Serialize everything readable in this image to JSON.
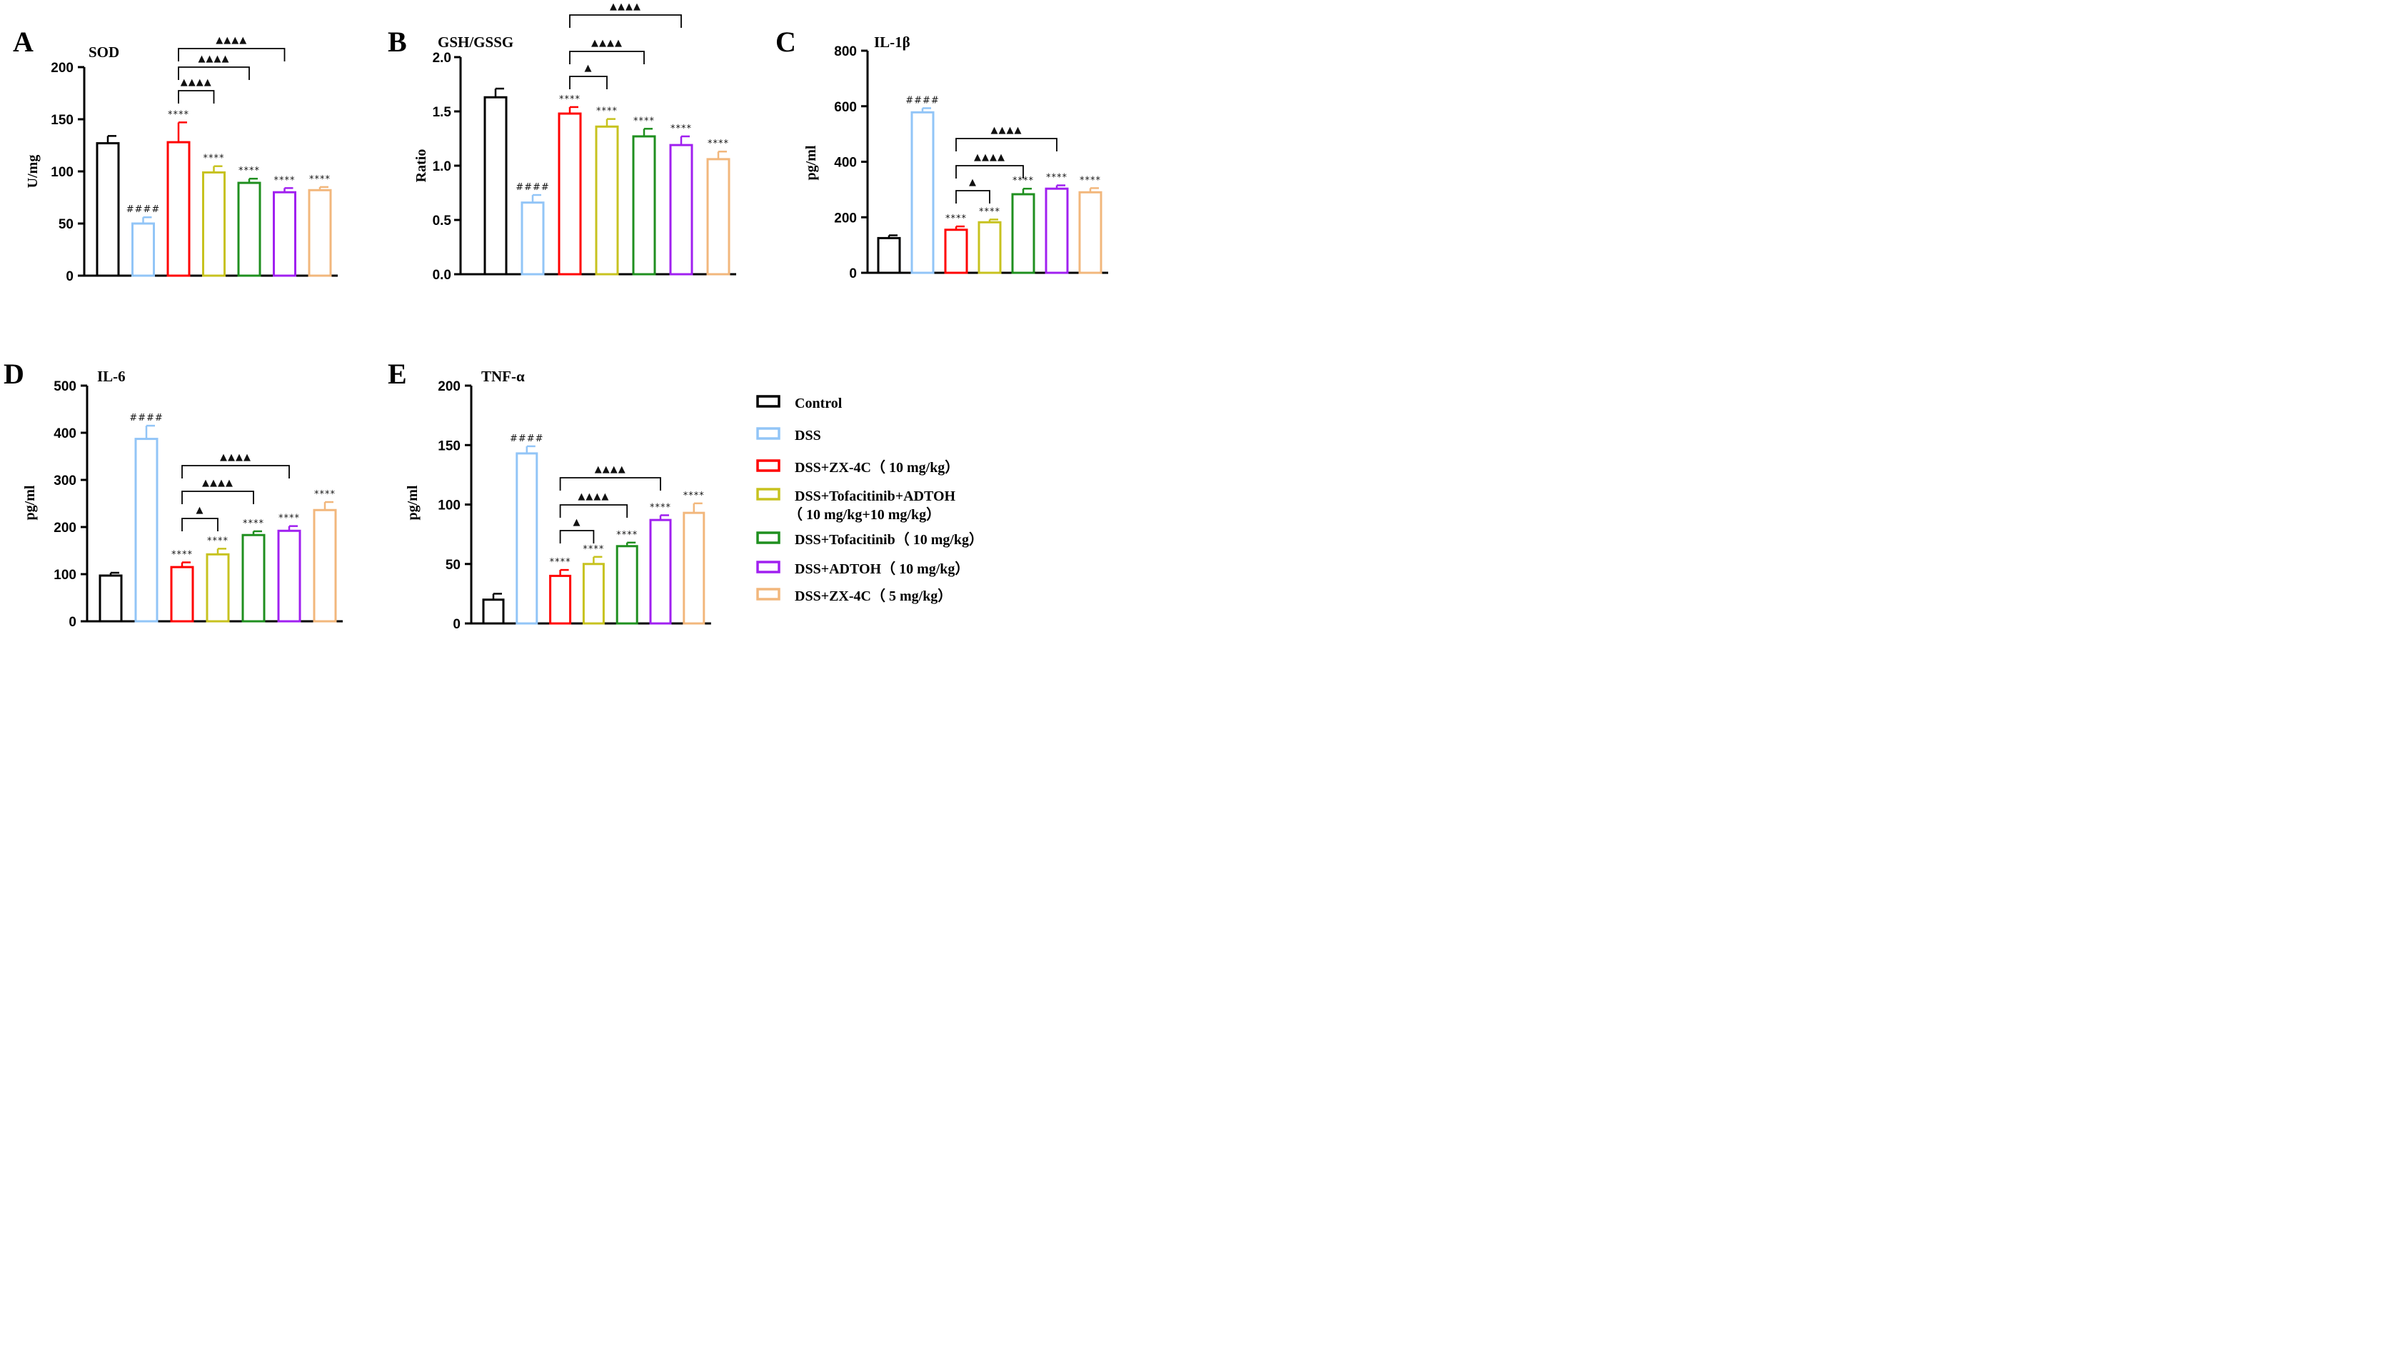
{
  "groups": [
    {
      "name": "Control",
      "color": "#000000",
      "fill": "#ffffff"
    },
    {
      "name": "DSS",
      "color": "#92c5f7",
      "fill": "#ffffff"
    },
    {
      "name": "DSS+ZX-4C（ 10 mg/kg）",
      "color": "#ff0000",
      "fill": "#ffffff"
    },
    {
      "name": "DSS+Tofacitinib+ADTOH",
      "name2": "（ 10 mg/kg+10 mg/kg）",
      "color": "#c7c21f",
      "fill": "#ffffff"
    },
    {
      "name": "DSS+Tofacitinib（ 10 mg/kg）",
      "color": "#1f8f1f",
      "fill": "#ffffff"
    },
    {
      "name": "DSS+ADTOH（ 10 mg/kg）",
      "color": "#a020f0",
      "fill": "#ffffff"
    },
    {
      "name": "DSS+ZX-4C（ 5 mg/kg）",
      "color": "#f2b77c",
      "fill": "#ffffff"
    }
  ],
  "chart_data": [
    {
      "type": "bar",
      "panel": "A",
      "title": "SOD",
      "ylabel": "U/mg",
      "ylim": [
        0,
        200
      ],
      "yticks": [
        0,
        50,
        100,
        150,
        200
      ],
      "values": [
        127,
        50,
        128,
        99,
        89,
        80,
        82
      ],
      "errors": [
        7,
        6,
        19,
        6,
        4,
        4,
        3
      ],
      "labels": [
        "",
        "####",
        "****",
        "****",
        "****",
        "****",
        "****"
      ],
      "brackets": [
        {
          "from": 2,
          "to": 3,
          "label": "▲▲▲▲"
        },
        {
          "from": 2,
          "to": 4,
          "label": "▲▲▲▲"
        },
        {
          "from": 2,
          "to": 5,
          "label": "▲▲▲▲"
        }
      ]
    },
    {
      "type": "bar",
      "panel": "B",
      "title": "GSH/GSSG",
      "ylabel": "Ratio",
      "ylim": [
        0,
        2.0
      ],
      "yticks": [
        "0.0",
        "0.5",
        "1.0",
        "1.5",
        "2.0"
      ],
      "values": [
        1.63,
        0.66,
        1.48,
        1.36,
        1.27,
        1.19,
        1.06
      ],
      "errors": [
        0.08,
        0.07,
        0.06,
        0.07,
        0.07,
        0.08,
        0.07
      ],
      "labels": [
        "",
        "####",
        "****",
        "****",
        "****",
        "****",
        "****"
      ],
      "brackets": [
        {
          "from": 2,
          "to": 3,
          "label": "▲"
        },
        {
          "from": 2,
          "to": 4,
          "label": "▲▲▲▲"
        },
        {
          "from": 2,
          "to": 5,
          "label": "▲▲▲▲"
        }
      ]
    },
    {
      "type": "bar",
      "panel": "C",
      "title": "IL-1β",
      "ylabel": "pg/ml",
      "ylim": [
        0,
        800
      ],
      "yticks": [
        0,
        200,
        400,
        600,
        800
      ],
      "values": [
        125,
        578,
        155,
        182,
        283,
        303,
        290
      ],
      "errors": [
        10,
        15,
        12,
        10,
        20,
        12,
        15
      ],
      "labels": [
        "",
        "####",
        "****",
        "****",
        "****",
        "****",
        "****"
      ],
      "brackets": [
        {
          "from": 2,
          "to": 3,
          "label": "▲"
        },
        {
          "from": 2,
          "to": 4,
          "label": "▲▲▲▲"
        },
        {
          "from": 2,
          "to": 5,
          "label": "▲▲▲▲"
        }
      ]
    },
    {
      "type": "bar",
      "panel": "D",
      "title": "IL-6",
      "ylabel": "pg/ml",
      "ylim": [
        0,
        500
      ],
      "yticks": [
        0,
        100,
        200,
        300,
        400,
        500
      ],
      "values": [
        97,
        387,
        115,
        142,
        183,
        192,
        236
      ],
      "errors": [
        6,
        28,
        10,
        12,
        8,
        10,
        17
      ],
      "labels": [
        "",
        "####",
        "****",
        "****",
        "****",
        "****",
        "****"
      ],
      "brackets": [
        {
          "from": 2,
          "to": 3,
          "label": "▲"
        },
        {
          "from": 2,
          "to": 4,
          "label": "▲▲▲▲"
        },
        {
          "from": 2,
          "to": 5,
          "label": "▲▲▲▲"
        }
      ]
    },
    {
      "type": "bar",
      "panel": "E",
      "title": "TNF-α",
      "ylabel": "pg/ml",
      "ylim": [
        0,
        200
      ],
      "yticks": [
        0,
        50,
        100,
        150,
        200
      ],
      "values": [
        20,
        143,
        40,
        50,
        65,
        87,
        93
      ],
      "errors": [
        5,
        6,
        5,
        6,
        3,
        4,
        8
      ],
      "labels": [
        "",
        "####",
        "****",
        "****",
        "****",
        "****",
        "****"
      ],
      "brackets": [
        {
          "from": 2,
          "to": 3,
          "label": "▲"
        },
        {
          "from": 2,
          "to": 4,
          "label": "▲▲▲▲"
        },
        {
          "from": 2,
          "to": 5,
          "label": "▲▲▲▲"
        }
      ]
    }
  ]
}
